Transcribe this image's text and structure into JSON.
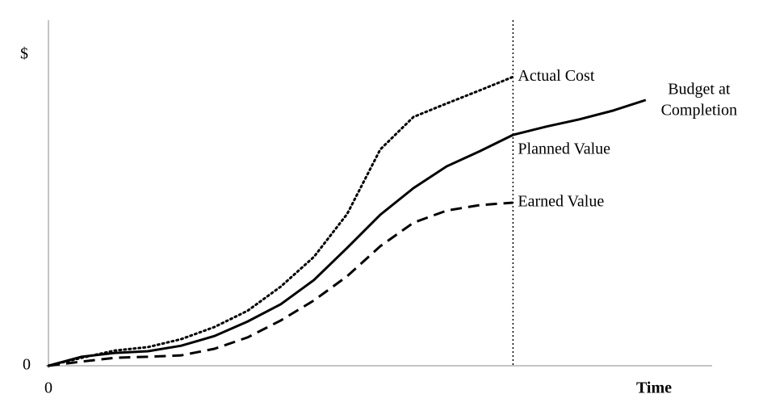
{
  "chart_data": {
    "type": "line",
    "y_label": "$",
    "x_label": "Time",
    "x": [
      0,
      5,
      10,
      15,
      20,
      25,
      30,
      35,
      40,
      45,
      50,
      55,
      60,
      65,
      70,
      75,
      80,
      85,
      90
    ],
    "series": [
      {
        "name": "Actual Cost",
        "color": "#000000",
        "style": "dotted",
        "values": [
          0,
          2.3,
          4.4,
          5.4,
          7.7,
          11.2,
          15.9,
          22.9,
          31.5,
          43.9,
          62.6,
          72.0,
          75.9,
          79.7,
          83.6,
          null,
          null,
          null,
          null
        ]
      },
      {
        "name": "Planned Value",
        "color": "#000000",
        "style": "solid",
        "values": [
          0,
          2.6,
          3.7,
          4.2,
          5.8,
          8.6,
          12.8,
          17.8,
          24.8,
          34.1,
          43.7,
          51.4,
          57.7,
          62.1,
          66.8,
          69.2,
          71.3,
          73.8,
          76.9
        ]
      },
      {
        "name": "Earned Value",
        "color": "#000000",
        "style": "dashed",
        "values": [
          0,
          1.2,
          2.3,
          2.6,
          3.0,
          4.9,
          8.2,
          13.1,
          18.9,
          25.9,
          34.6,
          41.4,
          44.9,
          46.5,
          47.2,
          null,
          null,
          null,
          null
        ]
      }
    ],
    "end_label": [
      "Budget at",
      "Completion"
    ],
    "xlim": [
      0,
      100
    ],
    "ylim": [
      0,
      100
    ],
    "xticks": [
      0
    ],
    "yticks": [
      0
    ],
    "grid": false
  }
}
